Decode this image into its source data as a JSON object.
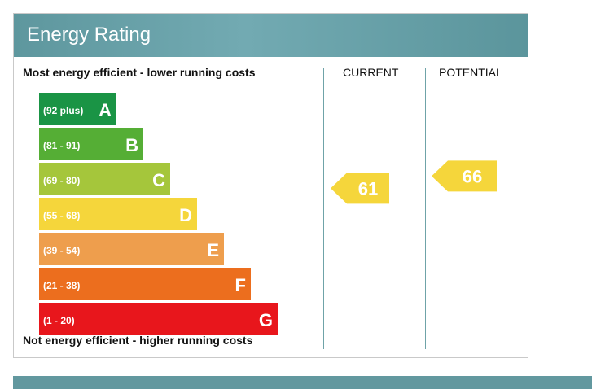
{
  "header": {
    "title": "Energy Rating"
  },
  "labels": {
    "top": "Most energy efficient - lower running costs",
    "bottom": "Not energy efficient - higher running costs",
    "current": "CURRENT",
    "potential": "POTENTIAL"
  },
  "chart_data": {
    "type": "bar",
    "categories": [
      "A",
      "B",
      "C",
      "D",
      "E",
      "F",
      "G"
    ],
    "ranges": [
      "(92 plus)",
      "(81 - 91)",
      "(69 - 80)",
      "(55 - 68)",
      "(39 - 54)",
      "(21 - 38)",
      "(1 - 20)"
    ],
    "colors": [
      "#1a9445",
      "#55ae35",
      "#a5c63b",
      "#f5d63b",
      "#ee9e4d",
      "#ec6e1e",
      "#e8161c"
    ],
    "current": {
      "value": 61,
      "band": "D"
    },
    "potential": {
      "value": 66,
      "band": "D"
    },
    "marker_color": "#f5d63b"
  }
}
